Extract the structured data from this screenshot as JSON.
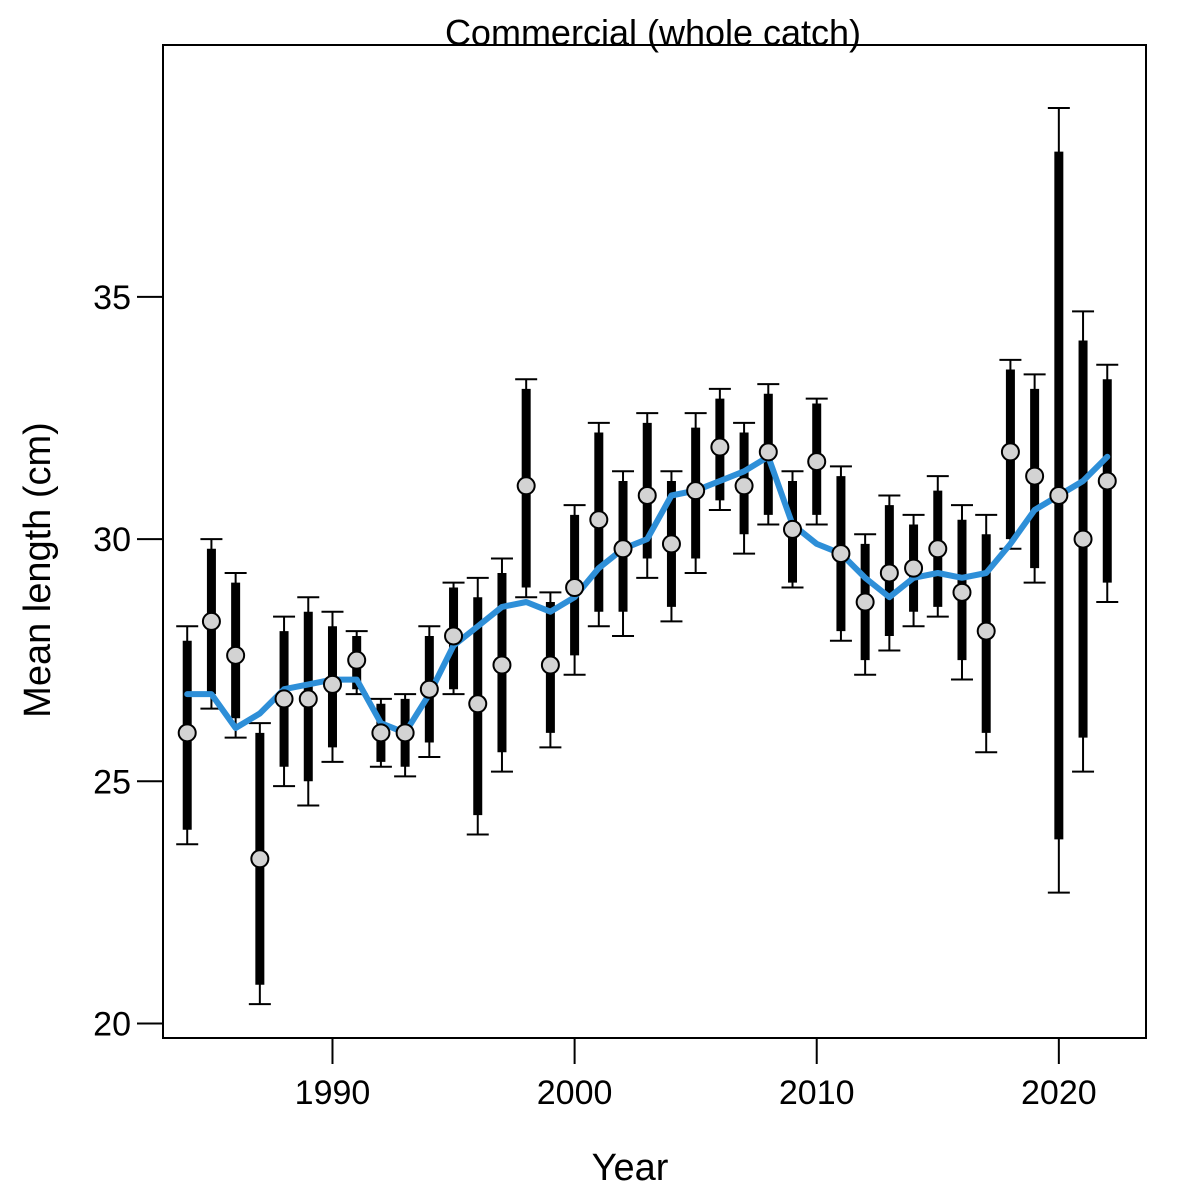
{
  "chart_data": {
    "type": "line",
    "title": "Commercial (whole catch)",
    "xlabel": "Year",
    "ylabel": "Mean length (cm)",
    "xlim": [
      1983,
      2023.6
    ],
    "ylim": [
      19.7,
      40.2
    ],
    "xticks": [
      1990,
      2000,
      2010,
      2020
    ],
    "yticks": [
      20,
      25,
      30,
      35
    ],
    "grid": false,
    "legend": "none",
    "colors": {
      "smooth_line": "#2E8FD8",
      "points_fill": "#D3D3D3",
      "bars": "#000000"
    },
    "series": [
      {
        "type": "points_with_intervals",
        "x": [
          1984,
          1985,
          1986,
          1987,
          1988,
          1989,
          1990,
          1991,
          1992,
          1993,
          1994,
          1995,
          1996,
          1997,
          1998,
          1999,
          2000,
          2001,
          2002,
          2003,
          2004,
          2005,
          2006,
          2007,
          2008,
          2009,
          2010,
          2011,
          2012,
          2013,
          2014,
          2015,
          2016,
          2017,
          2018,
          2019,
          2020,
          2021,
          2022
        ],
        "y": [
          26.0,
          28.3,
          27.6,
          23.4,
          26.7,
          26.7,
          27.0,
          27.5,
          26.0,
          26.0,
          26.9,
          28.0,
          26.6,
          27.4,
          31.1,
          27.4,
          29.0,
          30.4,
          29.8,
          30.9,
          29.9,
          31.0,
          31.9,
          31.1,
          31.8,
          30.2,
          31.6,
          29.7,
          28.7,
          29.3,
          29.4,
          29.8,
          28.9,
          28.1,
          31.8,
          31.3,
          30.9,
          30.0,
          31.2
        ],
        "inner_low": [
          24.0,
          26.8,
          26.3,
          20.8,
          25.3,
          25.0,
          25.7,
          26.9,
          25.4,
          25.3,
          25.8,
          26.9,
          24.3,
          25.6,
          29.0,
          26.0,
          27.6,
          28.5,
          28.5,
          29.6,
          28.6,
          29.6,
          30.8,
          30.1,
          30.5,
          29.1,
          30.5,
          28.1,
          27.5,
          28.0,
          28.5,
          28.6,
          27.5,
          26.0,
          30.0,
          29.4,
          23.8,
          25.9,
          29.1
        ],
        "inner_high": [
          27.9,
          29.8,
          29.1,
          26.0,
          28.1,
          28.5,
          28.2,
          28.0,
          26.6,
          26.7,
          28.0,
          29.0,
          28.8,
          29.3,
          33.1,
          28.7,
          30.5,
          32.2,
          31.2,
          32.4,
          31.2,
          32.3,
          32.9,
          32.2,
          33.0,
          31.2,
          32.8,
          31.3,
          29.9,
          30.7,
          30.3,
          31.0,
          30.4,
          30.1,
          33.5,
          33.1,
          38.0,
          34.1,
          33.3
        ],
        "outer_low": [
          23.7,
          26.5,
          25.9,
          20.4,
          24.9,
          24.5,
          25.4,
          26.8,
          25.3,
          25.1,
          25.5,
          26.8,
          23.9,
          25.2,
          28.8,
          25.7,
          27.2,
          28.2,
          28.0,
          29.2,
          28.3,
          29.3,
          30.6,
          29.7,
          30.3,
          29.0,
          30.3,
          27.9,
          27.2,
          27.7,
          28.2,
          28.4,
          27.1,
          25.6,
          29.8,
          29.1,
          22.7,
          25.2,
          28.7
        ],
        "outer_high": [
          28.2,
          30.0,
          29.3,
          26.2,
          28.4,
          28.8,
          28.5,
          28.1,
          26.7,
          26.8,
          28.2,
          29.1,
          29.2,
          29.6,
          33.3,
          28.9,
          30.7,
          32.4,
          31.4,
          32.6,
          31.4,
          32.6,
          33.1,
          32.4,
          33.2,
          31.4,
          32.9,
          31.5,
          30.1,
          30.9,
          30.5,
          31.3,
          30.7,
          30.5,
          33.7,
          33.4,
          38.9,
          34.7,
          33.6
        ]
      },
      {
        "type": "smooth_line",
        "x": [
          1984,
          1985,
          1986,
          1987,
          1988,
          1989,
          1990,
          1991,
          1992,
          1993,
          1994,
          1995,
          1996,
          1997,
          1998,
          1999,
          2000,
          2001,
          2002,
          2003,
          2004,
          2005,
          2006,
          2007,
          2008,
          2009,
          2010,
          2011,
          2012,
          2013,
          2014,
          2015,
          2016,
          2017,
          2018,
          2019,
          2020,
          2021,
          2022
        ],
        "y": [
          26.8,
          26.8,
          26.1,
          26.4,
          26.9,
          27.0,
          27.1,
          27.1,
          26.2,
          26.0,
          26.8,
          27.8,
          28.2,
          28.6,
          28.7,
          28.5,
          28.8,
          29.4,
          29.8,
          30.0,
          30.9,
          31.0,
          31.2,
          31.4,
          31.7,
          30.3,
          29.9,
          29.7,
          29.2,
          28.8,
          29.2,
          29.3,
          29.2,
          29.3,
          29.9,
          30.6,
          30.9,
          31.2,
          31.7
        ]
      }
    ]
  }
}
